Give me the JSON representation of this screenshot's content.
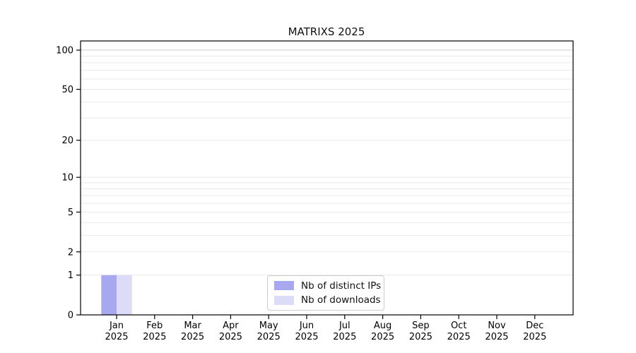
{
  "chart_data": {
    "type": "bar",
    "title": "MATRIXS 2025",
    "xlabel": "",
    "ylabel": "",
    "scale": "log1p",
    "categories": [
      "Jan\n2025",
      "Feb\n2025",
      "Mar\n2025",
      "Apr\n2025",
      "May\n2025",
      "Jun\n2025",
      "Jul\n2025",
      "Aug\n2025",
      "Sep\n2025",
      "Oct\n2025",
      "Nov\n2025",
      "Dec\n2025"
    ],
    "series": [
      {
        "name": "Nb of distinct IPs",
        "color": "#a8a8f0",
        "values": [
          1,
          0,
          0,
          0,
          0,
          0,
          0,
          0,
          0,
          0,
          0,
          0
        ]
      },
      {
        "name": "Nb of downloads",
        "color": "#dcdcf8",
        "values": [
          1,
          0,
          0,
          0,
          0,
          0,
          0,
          0,
          0,
          0,
          0,
          0
        ]
      }
    ],
    "yticks": [
      0,
      1,
      2,
      5,
      10,
      20,
      50,
      100
    ],
    "grid_values": [
      1,
      2,
      3,
      4,
      5,
      6,
      7,
      8,
      9,
      10,
      20,
      30,
      40,
      50,
      60,
      70,
      80,
      90,
      100
    ],
    "ylim": [
      0,
      116
    ],
    "grid": "horizontal",
    "legend_position": "bottom-center",
    "colors": {
      "grid_minor": "#e9e9e9",
      "grid_top": "#cfcfcf",
      "axis": "#000000",
      "text": "#000000"
    }
  }
}
